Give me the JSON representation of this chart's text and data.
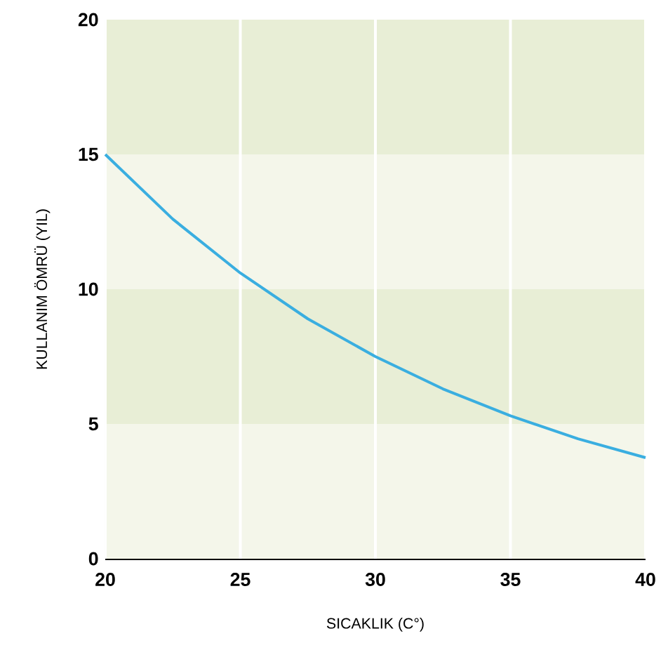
{
  "chart_data": {
    "type": "line",
    "xlabel": "SICAKLIK (C°)",
    "ylabel": "KULLANIM ÖMRÜ (YIL)",
    "x": [
      20,
      22.5,
      25,
      27.5,
      30,
      32.5,
      35,
      37.5,
      40
    ],
    "series": [
      {
        "color": "#3aaee0",
        "values": [
          15,
          12.6,
          10.6,
          8.9,
          7.5,
          6.3,
          5.3,
          4.45,
          3.75
        ]
      }
    ],
    "xlim": [
      20,
      40
    ],
    "ylim": [
      0,
      20
    ],
    "xticks": [
      20,
      25,
      30,
      35,
      40
    ],
    "yticks": [
      0,
      5,
      10,
      15,
      20
    ],
    "bands": [
      {
        "axis": "y",
        "from": 0,
        "to": 5,
        "color": "#f4f6ea"
      },
      {
        "axis": "y",
        "from": 5,
        "to": 10,
        "color": "#e8eed6"
      },
      {
        "axis": "y",
        "from": 10,
        "to": 15,
        "color": "#f4f6ea"
      },
      {
        "axis": "y",
        "from": 15,
        "to": 20,
        "color": "#e8eed6"
      }
    ],
    "grid": "x",
    "marker": "none",
    "line_style": "solid"
  }
}
